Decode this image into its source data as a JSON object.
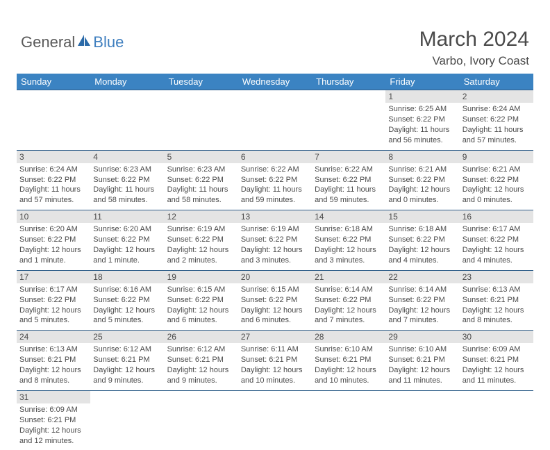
{
  "logo": {
    "general": "General",
    "blue": "Blue"
  },
  "header": {
    "title": "March 2024",
    "location": "Varbo, Ivory Coast"
  },
  "colors": {
    "header_bg": "#3b83c2",
    "header_text": "#ffffff",
    "daynum_bg": "#e4e4e4",
    "border": "#305f8a"
  },
  "daynames": [
    "Sunday",
    "Monday",
    "Tuesday",
    "Wednesday",
    "Thursday",
    "Friday",
    "Saturday"
  ],
  "weeks": [
    [
      {
        "n": "",
        "l1": "",
        "l2": "",
        "l3": "",
        "l4": ""
      },
      {
        "n": "",
        "l1": "",
        "l2": "",
        "l3": "",
        "l4": ""
      },
      {
        "n": "",
        "l1": "",
        "l2": "",
        "l3": "",
        "l4": ""
      },
      {
        "n": "",
        "l1": "",
        "l2": "",
        "l3": "",
        "l4": ""
      },
      {
        "n": "",
        "l1": "",
        "l2": "",
        "l3": "",
        "l4": ""
      },
      {
        "n": "1",
        "l1": "Sunrise: 6:25 AM",
        "l2": "Sunset: 6:22 PM",
        "l3": "Daylight: 11 hours",
        "l4": "and 56 minutes."
      },
      {
        "n": "2",
        "l1": "Sunrise: 6:24 AM",
        "l2": "Sunset: 6:22 PM",
        "l3": "Daylight: 11 hours",
        "l4": "and 57 minutes."
      }
    ],
    [
      {
        "n": "3",
        "l1": "Sunrise: 6:24 AM",
        "l2": "Sunset: 6:22 PM",
        "l3": "Daylight: 11 hours",
        "l4": "and 57 minutes."
      },
      {
        "n": "4",
        "l1": "Sunrise: 6:23 AM",
        "l2": "Sunset: 6:22 PM",
        "l3": "Daylight: 11 hours",
        "l4": "and 58 minutes."
      },
      {
        "n": "5",
        "l1": "Sunrise: 6:23 AM",
        "l2": "Sunset: 6:22 PM",
        "l3": "Daylight: 11 hours",
        "l4": "and 58 minutes."
      },
      {
        "n": "6",
        "l1": "Sunrise: 6:22 AM",
        "l2": "Sunset: 6:22 PM",
        "l3": "Daylight: 11 hours",
        "l4": "and 59 minutes."
      },
      {
        "n": "7",
        "l1": "Sunrise: 6:22 AM",
        "l2": "Sunset: 6:22 PM",
        "l3": "Daylight: 11 hours",
        "l4": "and 59 minutes."
      },
      {
        "n": "8",
        "l1": "Sunrise: 6:21 AM",
        "l2": "Sunset: 6:22 PM",
        "l3": "Daylight: 12 hours",
        "l4": "and 0 minutes."
      },
      {
        "n": "9",
        "l1": "Sunrise: 6:21 AM",
        "l2": "Sunset: 6:22 PM",
        "l3": "Daylight: 12 hours",
        "l4": "and 0 minutes."
      }
    ],
    [
      {
        "n": "10",
        "l1": "Sunrise: 6:20 AM",
        "l2": "Sunset: 6:22 PM",
        "l3": "Daylight: 12 hours",
        "l4": "and 1 minute."
      },
      {
        "n": "11",
        "l1": "Sunrise: 6:20 AM",
        "l2": "Sunset: 6:22 PM",
        "l3": "Daylight: 12 hours",
        "l4": "and 1 minute."
      },
      {
        "n": "12",
        "l1": "Sunrise: 6:19 AM",
        "l2": "Sunset: 6:22 PM",
        "l3": "Daylight: 12 hours",
        "l4": "and 2 minutes."
      },
      {
        "n": "13",
        "l1": "Sunrise: 6:19 AM",
        "l2": "Sunset: 6:22 PM",
        "l3": "Daylight: 12 hours",
        "l4": "and 3 minutes."
      },
      {
        "n": "14",
        "l1": "Sunrise: 6:18 AM",
        "l2": "Sunset: 6:22 PM",
        "l3": "Daylight: 12 hours",
        "l4": "and 3 minutes."
      },
      {
        "n": "15",
        "l1": "Sunrise: 6:18 AM",
        "l2": "Sunset: 6:22 PM",
        "l3": "Daylight: 12 hours",
        "l4": "and 4 minutes."
      },
      {
        "n": "16",
        "l1": "Sunrise: 6:17 AM",
        "l2": "Sunset: 6:22 PM",
        "l3": "Daylight: 12 hours",
        "l4": "and 4 minutes."
      }
    ],
    [
      {
        "n": "17",
        "l1": "Sunrise: 6:17 AM",
        "l2": "Sunset: 6:22 PM",
        "l3": "Daylight: 12 hours",
        "l4": "and 5 minutes."
      },
      {
        "n": "18",
        "l1": "Sunrise: 6:16 AM",
        "l2": "Sunset: 6:22 PM",
        "l3": "Daylight: 12 hours",
        "l4": "and 5 minutes."
      },
      {
        "n": "19",
        "l1": "Sunrise: 6:15 AM",
        "l2": "Sunset: 6:22 PM",
        "l3": "Daylight: 12 hours",
        "l4": "and 6 minutes."
      },
      {
        "n": "20",
        "l1": "Sunrise: 6:15 AM",
        "l2": "Sunset: 6:22 PM",
        "l3": "Daylight: 12 hours",
        "l4": "and 6 minutes."
      },
      {
        "n": "21",
        "l1": "Sunrise: 6:14 AM",
        "l2": "Sunset: 6:22 PM",
        "l3": "Daylight: 12 hours",
        "l4": "and 7 minutes."
      },
      {
        "n": "22",
        "l1": "Sunrise: 6:14 AM",
        "l2": "Sunset: 6:22 PM",
        "l3": "Daylight: 12 hours",
        "l4": "and 7 minutes."
      },
      {
        "n": "23",
        "l1": "Sunrise: 6:13 AM",
        "l2": "Sunset: 6:21 PM",
        "l3": "Daylight: 12 hours",
        "l4": "and 8 minutes."
      }
    ],
    [
      {
        "n": "24",
        "l1": "Sunrise: 6:13 AM",
        "l2": "Sunset: 6:21 PM",
        "l3": "Daylight: 12 hours",
        "l4": "and 8 minutes."
      },
      {
        "n": "25",
        "l1": "Sunrise: 6:12 AM",
        "l2": "Sunset: 6:21 PM",
        "l3": "Daylight: 12 hours",
        "l4": "and 9 minutes."
      },
      {
        "n": "26",
        "l1": "Sunrise: 6:12 AM",
        "l2": "Sunset: 6:21 PM",
        "l3": "Daylight: 12 hours",
        "l4": "and 9 minutes."
      },
      {
        "n": "27",
        "l1": "Sunrise: 6:11 AM",
        "l2": "Sunset: 6:21 PM",
        "l3": "Daylight: 12 hours",
        "l4": "and 10 minutes."
      },
      {
        "n": "28",
        "l1": "Sunrise: 6:10 AM",
        "l2": "Sunset: 6:21 PM",
        "l3": "Daylight: 12 hours",
        "l4": "and 10 minutes."
      },
      {
        "n": "29",
        "l1": "Sunrise: 6:10 AM",
        "l2": "Sunset: 6:21 PM",
        "l3": "Daylight: 12 hours",
        "l4": "and 11 minutes."
      },
      {
        "n": "30",
        "l1": "Sunrise: 6:09 AM",
        "l2": "Sunset: 6:21 PM",
        "l3": "Daylight: 12 hours",
        "l4": "and 11 minutes."
      }
    ],
    [
      {
        "n": "31",
        "l1": "Sunrise: 6:09 AM",
        "l2": "Sunset: 6:21 PM",
        "l3": "Daylight: 12 hours",
        "l4": "and 12 minutes."
      },
      {
        "n": "",
        "l1": "",
        "l2": "",
        "l3": "",
        "l4": ""
      },
      {
        "n": "",
        "l1": "",
        "l2": "",
        "l3": "",
        "l4": ""
      },
      {
        "n": "",
        "l1": "",
        "l2": "",
        "l3": "",
        "l4": ""
      },
      {
        "n": "",
        "l1": "",
        "l2": "",
        "l3": "",
        "l4": ""
      },
      {
        "n": "",
        "l1": "",
        "l2": "",
        "l3": "",
        "l4": ""
      },
      {
        "n": "",
        "l1": "",
        "l2": "",
        "l3": "",
        "l4": ""
      }
    ]
  ]
}
